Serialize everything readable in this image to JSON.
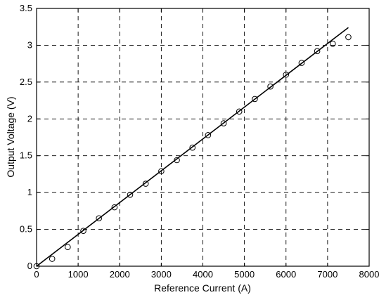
{
  "chart_data": {
    "type": "scatter",
    "xlabel": "Reference Current (A)",
    "ylabel": "Output Voltage (V)",
    "xlim": [
      0,
      8000
    ],
    "ylim": [
      0,
      3.5
    ],
    "x_ticks": [
      "0",
      "1000",
      "2000",
      "3000",
      "4000",
      "5000",
      "6000",
      "7000",
      "8000"
    ],
    "y_ticks": [
      "0",
      "0.5",
      "1",
      "1.5",
      "2",
      "2.5",
      "3",
      "3.5"
    ],
    "grid": true,
    "series": [
      {
        "style": "markers-circle",
        "x": [
          0,
          375,
          750,
          1125,
          1500,
          1875,
          2250,
          2625,
          3000,
          3375,
          3750,
          4125,
          4500,
          4875,
          5250,
          5625,
          6000,
          6375,
          6750,
          7125,
          7500
        ],
        "y": [
          0.0,
          0.1,
          0.26,
          0.48,
          0.65,
          0.8,
          0.97,
          1.12,
          1.29,
          1.44,
          1.61,
          1.78,
          1.94,
          2.1,
          2.27,
          2.44,
          2.6,
          2.76,
          2.92,
          3.02,
          3.11
        ]
      },
      {
        "style": "line",
        "x": [
          0,
          7500
        ],
        "y": [
          0.0,
          3.24
        ]
      }
    ]
  }
}
